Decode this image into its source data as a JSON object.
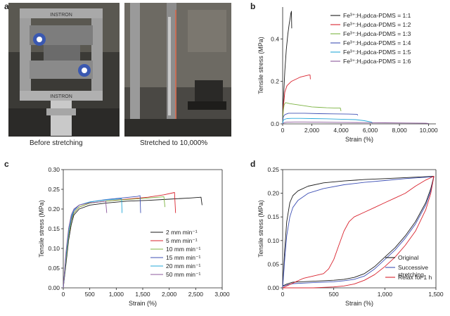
{
  "panel_labels": {
    "a": "a",
    "b": "b",
    "c": "c",
    "d": "d"
  },
  "photos": {
    "left_caption": "Before stretching",
    "right_caption": "Stretched to 10,000%",
    "instron_text": "INSTRON"
  },
  "chart_data": [
    {
      "panel": "b",
      "type": "line",
      "xlabel": "Strain (%)",
      "ylabel": "Tensile stress (MPa)",
      "xlim": [
        0,
        10500
      ],
      "ylim": [
        0,
        0.55
      ],
      "xticks": [
        "0",
        "2,000",
        "4,000",
        "6,000",
        "8,000",
        "10,000"
      ],
      "xtick_values": [
        0,
        2000,
        4000,
        6000,
        8000,
        10000
      ],
      "yticks": [
        "0.0",
        "0.2",
        "0.4"
      ],
      "ytick_values": [
        0,
        0.2,
        0.4
      ],
      "legend_position": "top-right",
      "series": [
        {
          "name": "Fe³⁺:H₂pdca-PDMS = 1:1",
          "color": "#1a1a1a",
          "x": [
            0,
            60,
            150,
            250,
            350,
            450,
            520,
            560,
            600,
            620
          ],
          "y": [
            0,
            0.12,
            0.25,
            0.35,
            0.42,
            0.47,
            0.5,
            0.52,
            0.53,
            0.45
          ]
        },
        {
          "name": "Fe³⁺:H₂pdca-PDMS = 1:2",
          "color": "#d9232e",
          "x": [
            0,
            50,
            150,
            300,
            600,
            900,
            1200,
            1500,
            1800,
            1880,
            1900
          ],
          "y": [
            0,
            0.08,
            0.15,
            0.18,
            0.2,
            0.21,
            0.22,
            0.225,
            0.23,
            0.23,
            0.21
          ]
        },
        {
          "name": "Fe³⁺:H₂pdca-PDMS = 1:3",
          "color": "#7cb342",
          "x": [
            0,
            40,
            100,
            200,
            500,
            1000,
            1500,
            2000,
            2500,
            3000,
            3500,
            3950,
            4000
          ],
          "y": [
            0,
            0.06,
            0.09,
            0.1,
            0.095,
            0.09,
            0.085,
            0.08,
            0.078,
            0.076,
            0.075,
            0.075,
            0.06
          ]
        },
        {
          "name": "Fe³⁺:H₂pdca-PDMS = 1:4",
          "color": "#3f51b5",
          "x": [
            0,
            40,
            100,
            200,
            400,
            800,
            1500,
            2500,
            3500,
            4500,
            5100,
            5150
          ],
          "y": [
            0,
            0.03,
            0.04,
            0.045,
            0.05,
            0.05,
            0.05,
            0.048,
            0.047,
            0.046,
            0.045,
            0.04
          ]
        },
        {
          "name": "Fe³⁺:H₂pdca-PDMS = 1:5",
          "color": "#26a8d9",
          "x": [
            0,
            50,
            150,
            300,
            600,
            1200,
            2000,
            3000,
            4000,
            5000,
            5600,
            6100,
            6150
          ],
          "y": [
            0,
            0.018,
            0.022,
            0.025,
            0.026,
            0.026,
            0.025,
            0.024,
            0.022,
            0.02,
            0.015,
            0.008,
            0.003
          ]
        },
        {
          "name": "Fe³⁺:H₂pdca-PDMS = 1:6",
          "color": "#8d5a9c",
          "x": [
            0,
            100,
            300,
            800,
            1500,
            2500,
            4000,
            5500,
            7000,
            8500,
            9800,
            10000
          ],
          "y": [
            0,
            0.006,
            0.008,
            0.009,
            0.009,
            0.008,
            0.007,
            0.006,
            0.005,
            0.004,
            0.003,
            0.002
          ]
        }
      ]
    },
    {
      "panel": "c",
      "type": "line",
      "xlabel": "Strain (%)",
      "ylabel": "Tensile stress (MPa)",
      "xlim": [
        0,
        3000
      ],
      "ylim": [
        0,
        0.3
      ],
      "xticks": [
        "0",
        "500",
        "1,000",
        "1,500",
        "2,000",
        "2,500",
        "3,000"
      ],
      "xtick_values": [
        0,
        500,
        1000,
        1500,
        2000,
        2500,
        3000
      ],
      "yticks": [
        "0.00",
        "0.05",
        "0.10",
        "0.15",
        "0.20",
        "0.25",
        "0.30"
      ],
      "ytick_values": [
        0,
        0.05,
        0.1,
        0.15,
        0.2,
        0.25,
        0.3
      ],
      "legend_position": "bottom-right",
      "series": [
        {
          "name": "2 mm min⁻¹",
          "color": "#1a1a1a",
          "x": [
            0,
            50,
            100,
            150,
            200,
            300,
            500,
            800,
            1200,
            1600,
            2000,
            2400,
            2600,
            2620
          ],
          "y": [
            0,
            0.06,
            0.12,
            0.16,
            0.185,
            0.2,
            0.21,
            0.215,
            0.22,
            0.222,
            0.225,
            0.228,
            0.23,
            0.21
          ]
        },
        {
          "name": "5 mm min⁻¹",
          "color": "#d9232e",
          "x": [
            0,
            50,
            100,
            150,
            200,
            300,
            500,
            800,
            1200,
            1600,
            1900,
            2100,
            2120
          ],
          "y": [
            0,
            0.07,
            0.13,
            0.17,
            0.19,
            0.205,
            0.215,
            0.22,
            0.225,
            0.23,
            0.236,
            0.242,
            0.19
          ]
        },
        {
          "name": "10 mm min⁻¹",
          "color": "#7cb342",
          "x": [
            0,
            50,
            100,
            150,
            200,
            300,
            500,
            800,
            1200,
            1600,
            1900,
            1920
          ],
          "y": [
            0,
            0.07,
            0.13,
            0.17,
            0.19,
            0.205,
            0.215,
            0.22,
            0.224,
            0.228,
            0.231,
            0.205
          ]
        },
        {
          "name": "15 mm min⁻¹",
          "color": "#3f51b5",
          "x": [
            0,
            50,
            100,
            150,
            200,
            300,
            500,
            800,
            1100,
            1400,
            1450,
            1460
          ],
          "y": [
            0,
            0.08,
            0.14,
            0.175,
            0.195,
            0.21,
            0.218,
            0.224,
            0.228,
            0.232,
            0.234,
            0.19
          ]
        },
        {
          "name": "20 mm min⁻¹",
          "color": "#26a8d9",
          "x": [
            0,
            50,
            100,
            150,
            200,
            300,
            500,
            800,
            1000,
            1100,
            1110
          ],
          "y": [
            0,
            0.08,
            0.14,
            0.18,
            0.198,
            0.21,
            0.218,
            0.223,
            0.225,
            0.226,
            0.19
          ]
        },
        {
          "name": "50 mm min⁻¹",
          "color": "#8d5a9c",
          "x": [
            0,
            50,
            100,
            150,
            200,
            300,
            500,
            700,
            800,
            820
          ],
          "y": [
            0,
            0.09,
            0.15,
            0.185,
            0.2,
            0.21,
            0.216,
            0.218,
            0.22,
            0.19
          ]
        }
      ]
    },
    {
      "panel": "d",
      "type": "line",
      "xlabel": "Strain (%)",
      "ylabel": "Tensile stress (MPa)",
      "xlim": [
        0,
        1500
      ],
      "ylim": [
        0,
        0.25
      ],
      "xticks": [
        "0",
        "500",
        "1,000",
        "1,500"
      ],
      "xtick_values": [
        0,
        500,
        1000,
        1500
      ],
      "yticks": [
        "0.00",
        "0.05",
        "0.10",
        "0.15",
        "0.20",
        "0.25"
      ],
      "ytick_values": [
        0,
        0.05,
        0.1,
        0.15,
        0.2,
        0.25
      ],
      "legend_position": "bottom-right",
      "series": [
        {
          "name": "Original",
          "color": "#1a1a1a",
          "x": [
            0,
            20,
            40,
            70,
            100,
            150,
            250,
            400,
            600,
            800,
            1000,
            1200,
            1400,
            1480,
            1450,
            1400,
            1300,
            1200,
            1100,
            1000,
            900,
            800,
            700,
            600,
            500,
            400,
            300,
            200,
            100,
            40,
            0
          ],
          "y": [
            0,
            0.08,
            0.14,
            0.18,
            0.195,
            0.205,
            0.215,
            0.222,
            0.226,
            0.229,
            0.231,
            0.233,
            0.235,
            0.236,
            0.21,
            0.18,
            0.14,
            0.11,
            0.085,
            0.065,
            0.045,
            0.03,
            0.022,
            0.018,
            0.016,
            0.015,
            0.014,
            0.013,
            0.012,
            0.008,
            0.004
          ]
        },
        {
          "name": "Successive stretching",
          "color": "#3f51b5",
          "x": [
            0,
            20,
            40,
            70,
            100,
            150,
            250,
            400,
            600,
            800,
            1000,
            1200,
            1400,
            1480,
            1450,
            1400,
            1300,
            1200,
            1100,
            1000,
            900,
            800,
            700,
            600,
            500,
            400,
            300,
            200,
            100,
            40,
            0
          ],
          "y": [
            0,
            0.06,
            0.11,
            0.15,
            0.17,
            0.185,
            0.2,
            0.21,
            0.218,
            0.223,
            0.227,
            0.231,
            0.234,
            0.235,
            0.205,
            0.175,
            0.135,
            0.105,
            0.08,
            0.06,
            0.04,
            0.025,
            0.018,
            0.015,
            0.013,
            0.012,
            0.011,
            0.01,
            0.009,
            0.006,
            0.003
          ]
        },
        {
          "name": "Relax for 1 h",
          "color": "#d9232e",
          "x": [
            0,
            100,
            200,
            300,
            400,
            450,
            500,
            550,
            600,
            650,
            700,
            800,
            900,
            1000,
            1100,
            1200,
            1300,
            1400,
            1480,
            1450,
            1400,
            1300,
            1200,
            1100,
            1000,
            900,
            800,
            700,
            600,
            500,
            400,
            300,
            200,
            100,
            0
          ],
          "y": [
            0,
            0.01,
            0.02,
            0.025,
            0.03,
            0.04,
            0.06,
            0.09,
            0.12,
            0.14,
            0.15,
            0.16,
            0.17,
            0.18,
            0.19,
            0.2,
            0.215,
            0.228,
            0.236,
            0.2,
            0.165,
            0.12,
            0.09,
            0.065,
            0.045,
            0.028,
            0.016,
            0.008,
            0.004,
            0.002,
            0.001,
            0.0,
            0.0,
            0.0,
            0.0
          ]
        }
      ]
    }
  ]
}
